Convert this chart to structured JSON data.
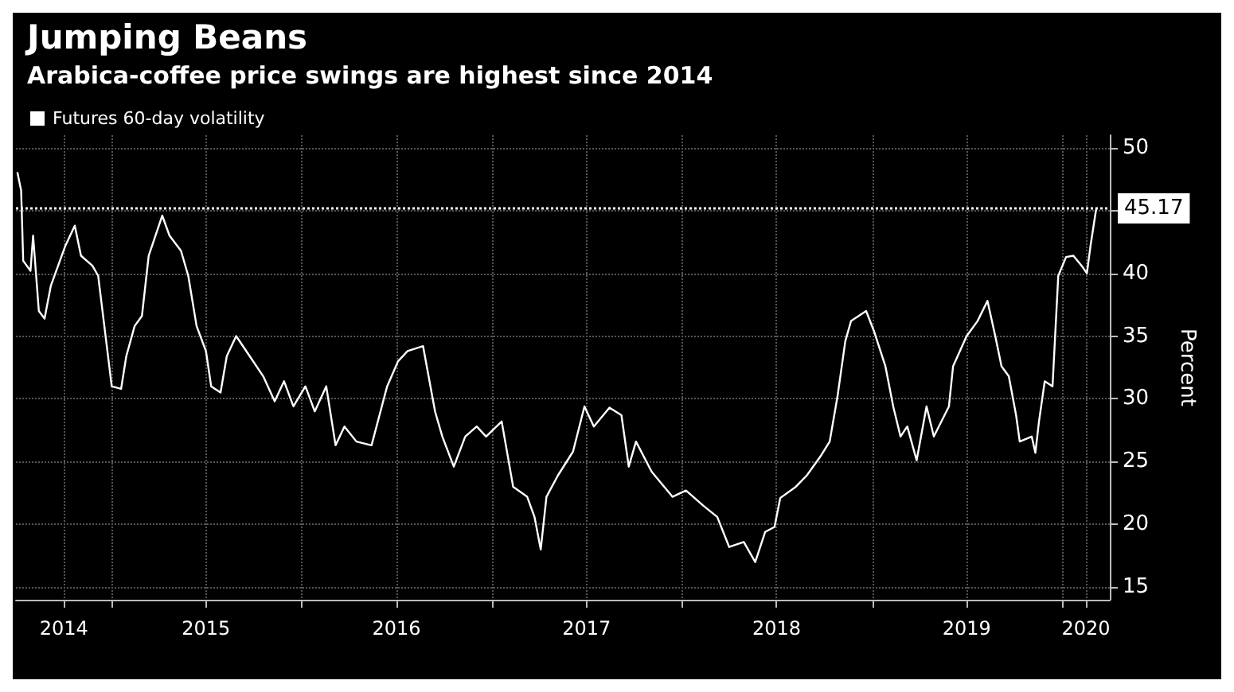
{
  "chart_data": {
    "type": "line",
    "title": "Jumping Beans",
    "subtitle": "Arabica-coffee price swings are highest since 2014",
    "ylabel": "Percent",
    "legend": "top left",
    "grid": true,
    "marker": "none",
    "line_style": "solid",
    "xlim": [
      "2014-07-01",
      "2020-04-01"
    ],
    "xticks": [
      {
        "value": "2014-10-01",
        "label": "2014"
      },
      {
        "value": "2015-01-01",
        "label": null
      },
      {
        "value": "2015-07-01",
        "label": "2015"
      },
      {
        "value": "2016-01-01",
        "label": null
      },
      {
        "value": "2016-07-01",
        "label": "2016"
      },
      {
        "value": "2017-01-01",
        "label": null
      },
      {
        "value": "2017-07-01",
        "label": "2017"
      },
      {
        "value": "2018-01-01",
        "label": null
      },
      {
        "value": "2018-07-01",
        "label": "2018"
      },
      {
        "value": "2019-01-01",
        "label": null
      },
      {
        "value": "2019-07-01",
        "label": "2019"
      },
      {
        "value": "2020-01-01",
        "label": null
      },
      {
        "value": "2020-02-15",
        "label": "2020"
      }
    ],
    "ylim": [
      14,
      51
    ],
    "yticks": [
      15,
      20,
      25,
      30,
      35,
      40,
      {
        "value": 45,
        "label": null
      },
      50
    ],
    "ref_lines": [
      {
        "axis": "y",
        "value": 45.17,
        "label": "45.17",
        "color": "#ffffff",
        "line_style": "dotted"
      }
    ],
    "series": [
      {
        "name": "Futures 60-day volatility",
        "color": "#ffffff",
        "x": [
          "2014-07-04",
          "2014-07-11",
          "2014-07-15",
          "2014-07-29",
          "2014-08-03",
          "2014-08-14",
          "2014-08-25",
          "2014-09-06",
          "2014-10-04",
          "2014-10-22",
          "2014-11-03",
          "2014-11-25",
          "2014-12-06",
          "2015-01-01",
          "2015-01-19",
          "2015-01-29",
          "2015-02-14",
          "2015-02-28",
          "2015-03-13",
          "2015-04-08",
          "2015-04-22",
          "2015-05-14",
          "2015-05-28",
          "2015-06-13",
          "2015-07-01",
          "2015-07-11",
          "2015-07-29",
          "2015-08-10",
          "2015-08-28",
          "2015-09-23",
          "2015-10-19",
          "2015-11-10",
          "2015-11-28",
          "2015-12-16",
          "2016-01-08",
          "2016-01-26",
          "2016-02-17",
          "2016-03-06",
          "2016-03-23",
          "2016-04-15",
          "2016-05-14",
          "2016-06-13",
          "2016-07-04",
          "2016-07-22",
          "2016-08-21",
          "2016-09-13",
          "2016-09-27",
          "2016-10-19",
          "2016-11-10",
          "2016-12-02",
          "2016-12-20",
          "2017-01-19",
          "2017-02-10",
          "2017-03-09",
          "2017-03-23",
          "2017-04-04",
          "2017-04-15",
          "2017-05-07",
          "2017-06-05",
          "2017-06-27",
          "2017-07-15",
          "2017-08-14",
          "2017-09-06",
          "2017-09-20",
          "2017-10-04",
          "2017-11-03",
          "2017-12-13",
          "2018-01-08",
          "2018-02-10",
          "2018-03-09",
          "2018-04-01",
          "2018-04-29",
          "2018-05-21",
          "2018-06-09",
          "2018-06-27",
          "2018-07-08",
          "2018-08-07",
          "2018-08-28",
          "2018-09-23",
          "2018-10-11",
          "2018-10-26",
          "2018-11-10",
          "2018-11-21",
          "2018-12-20",
          "2019-01-04",
          "2019-01-26",
          "2019-02-10",
          "2019-02-24",
          "2019-03-09",
          "2019-03-27",
          "2019-04-15",
          "2019-04-29",
          "2019-05-28",
          "2019-06-05",
          "2019-07-01",
          "2019-07-22",
          "2019-08-10",
          "2019-08-25",
          "2019-09-06",
          "2019-09-20",
          "2019-10-04",
          "2019-10-11",
          "2019-11-03",
          "2019-11-10",
          "2019-11-17",
          "2019-11-28",
          "2019-12-13",
          "2019-12-24",
          "2020-01-08",
          "2020-01-22",
          "2020-02-07",
          "2020-02-17",
          "2020-02-24",
          "2020-03-06"
        ],
        "values": [
          48.0,
          46.6,
          41.0,
          40.2,
          43.0,
          37.0,
          36.4,
          39.0,
          42.2,
          43.8,
          41.4,
          40.6,
          39.8,
          31.0,
          30.8,
          33.4,
          35.8,
          36.6,
          41.4,
          44.6,
          43.0,
          41.8,
          39.8,
          35.8,
          33.8,
          31.0,
          30.5,
          33.4,
          35.0,
          33.4,
          31.8,
          29.8,
          31.4,
          29.4,
          31.0,
          29.0,
          31.0,
          26.3,
          27.8,
          26.6,
          26.3,
          31.0,
          33.0,
          33.8,
          34.2,
          29.0,
          27.0,
          24.6,
          27.0,
          27.8,
          27.0,
          28.2,
          23.0,
          22.2,
          20.6,
          18.0,
          22.2,
          23.9,
          25.8,
          29.4,
          27.8,
          29.3,
          28.7,
          24.6,
          26.6,
          24.2,
          22.2,
          22.7,
          21.5,
          20.6,
          18.2,
          18.6,
          17.0,
          19.4,
          19.8,
          22.1,
          23.0,
          23.9,
          25.4,
          26.6,
          30.2,
          34.6,
          36.2,
          37.0,
          35.4,
          32.6,
          29.4,
          27.0,
          27.8,
          25.1,
          29.4,
          27.0,
          29.4,
          32.6,
          35.0,
          36.2,
          37.8,
          35.0,
          32.6,
          31.8,
          28.7,
          26.6,
          27.0,
          25.7,
          28.2,
          31.4,
          31.0,
          39.8,
          41.3,
          41.4,
          40.6,
          40.0,
          42.2,
          45.17
        ]
      }
    ]
  }
}
